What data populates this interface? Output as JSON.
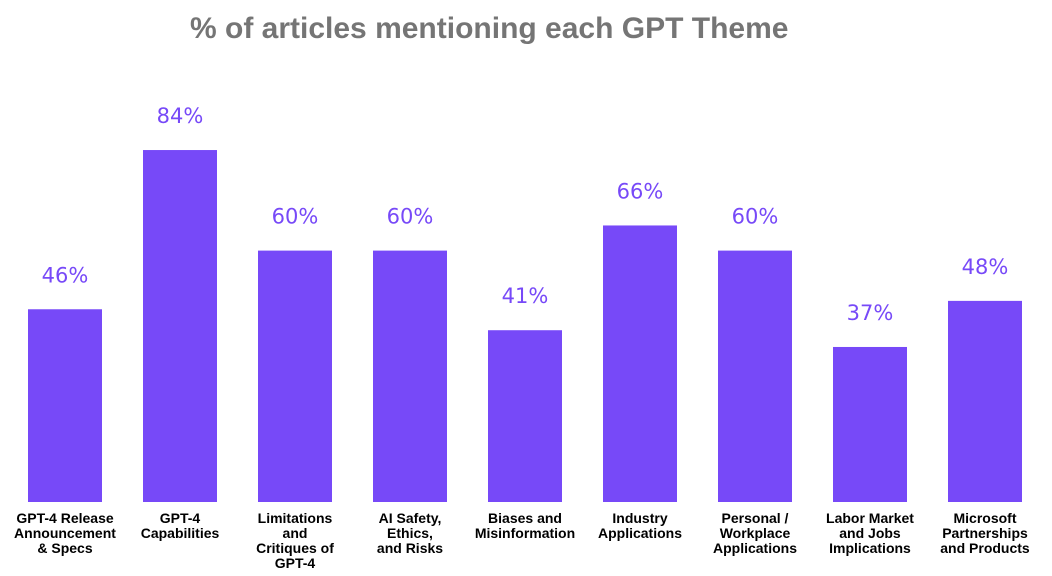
{
  "chart_data": {
    "type": "bar",
    "title": "% of articles mentioning each GPT Theme",
    "xlabel": "",
    "ylabel": "",
    "ylim": [
      0,
      100
    ],
    "grid": false,
    "legend": "none",
    "value_suffix": "%",
    "categories": [
      "GPT-4 Release Announcement & Specs",
      "GPT-4 Capabilities",
      "Limitations and Critiques of GPT-4",
      "AI Safety, Ethics, and Risks",
      "Biases and Misinformation",
      "Industry Applications",
      "Personal / Workplace Applications",
      "Labor Market and Jobs Implications",
      "Microsoft Partnerships and Products"
    ],
    "category_label_lines": [
      [
        "GPT-4 Release",
        "Announcement",
        "& Specs"
      ],
      [
        "GPT-4",
        "Capabilities"
      ],
      [
        "Limitations",
        "and",
        "Critiques of",
        "GPT-4"
      ],
      [
        "AI Safety,",
        "Ethics,",
        "and Risks"
      ],
      [
        "Biases and",
        "Misinformation"
      ],
      [
        "Industry",
        "Applications"
      ],
      [
        "Personal /",
        "Workplace",
        "Applications"
      ],
      [
        "Labor Market",
        "and Jobs",
        "Implications"
      ],
      [
        "Microsoft",
        "Partnerships",
        "and Products"
      ]
    ],
    "values": [
      46,
      84,
      60,
      60,
      41,
      66,
      60,
      37,
      48
    ],
    "data_labels": [
      "46%",
      "84%",
      "60%",
      "60%",
      "41%",
      "66%",
      "60%",
      "37%",
      "48%"
    ],
    "colors": {
      "bar": "#7749f8",
      "value_label": "#7749f8",
      "title": "#757575",
      "category_label": "#000000"
    }
  }
}
